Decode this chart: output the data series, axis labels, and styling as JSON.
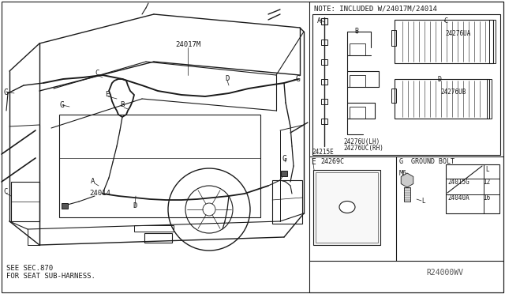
{
  "bg_color": "#ffffff",
  "line_color": "#1a1a1a",
  "note_text": "NOTE: INCLUDED W/24017M/24014",
  "bottom_left_text1": "SEE SEC.870",
  "bottom_left_text2": "FOR SEAT SUB-HARNESS.",
  "watermark": "R24000WV",
  "ground_bolt_title": "G  GROUND BOLT",
  "ground_bolt_m6": "M6",
  "ground_bolt_rows": [
    {
      "part": "24015G",
      "L": "12"
    },
    {
      "part": "24040A",
      "L": "16"
    }
  ]
}
